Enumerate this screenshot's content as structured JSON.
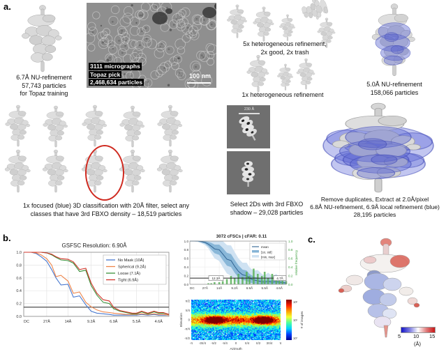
{
  "panels": {
    "a": "a.",
    "b": "b.",
    "c": "c."
  },
  "workflow": {
    "topaz_caption": "6.7Å NU-refinement\n57,743 particles\nfor Topaz training",
    "micrograph_line1": "3111 micrographs",
    "micrograph_line2": "Topaz pick",
    "micrograph_line3": "2,468,634 particles",
    "scale_bar_label": "100 nm",
    "hetero5_caption": "5x heterogeneous refinement,\n2x good, 2x trash",
    "hetero1_caption": "1x heterogeneous refinement",
    "nu5_caption": "5.0Å NU-refinement\n158,066 particles",
    "classification_caption": "1x focused (blue) 3D classification with 20Å filter, select any\nclasses that have 3rd FBXO density – 18,519 particles",
    "class2d_scale_label": "230 Å",
    "select2d_caption": "Select 2Ds with 3rd FBXO\nshadow – 29,028 particles",
    "final_caption": "Remove duplicates, Extract at 2.0Å/pixel\n6.8Å NU-refinement, 6.9Å local refinement (blue)\n28,195 particles"
  },
  "chart_data": [
    {
      "id": "gsfsc",
      "type": "line",
      "title": "GSFSC Resolution: 6.90Å",
      "threshold": 0.143,
      "x_max_freq": 0.234,
      "x_ticks": [
        [
          "DC",
          0
        ],
        [
          "27Å",
          0.037
        ],
        [
          "14Å",
          0.0714
        ],
        [
          "9.2Å",
          0.1087
        ],
        [
          "6.9Å",
          0.1449
        ],
        [
          "5.5Å",
          0.1818
        ],
        [
          "4.6Å",
          0.2174
        ]
      ],
      "y_ticks": [
        0,
        0.2,
        0.4,
        0.6,
        0.8,
        1.0
      ],
      "freq": [
        0,
        0.005,
        0.012,
        0.02,
        0.028,
        0.037,
        0.045,
        0.052,
        0.06,
        0.0714,
        0.08,
        0.09,
        0.1,
        0.1087,
        0.118,
        0.128,
        0.138,
        0.1449,
        0.155,
        0.165,
        0.175,
        0.1818,
        0.19,
        0.2,
        0.21,
        0.2174,
        0.225,
        0.234
      ],
      "series": [
        {
          "name": "No Mask (10Å)",
          "color": "#4878cf",
          "values": [
            1,
            1,
            1,
            0.98,
            0.93,
            0.86,
            0.73,
            0.6,
            0.49,
            0.5,
            0.3,
            0.32,
            0.18,
            0.08,
            0.05,
            0.04,
            0.03,
            0.02,
            0.02,
            0.02,
            0.02,
            0.02,
            0.03,
            0.02,
            0.03,
            0.02,
            0.02,
            0.02
          ]
        },
        {
          "name": "Spherical (9.2Å)",
          "color": "#ee854a",
          "values": [
            1,
            1,
            1,
            0.99,
            0.96,
            0.9,
            0.8,
            0.62,
            0.64,
            0.55,
            0.36,
            0.38,
            0.22,
            0.15,
            0.1,
            0.07,
            0.06,
            0.05,
            0.04,
            0.03,
            0.03,
            0.03,
            0.04,
            0.03,
            0.04,
            0.03,
            0.03,
            0.02
          ]
        },
        {
          "name": "Loose (7.1Å)",
          "color": "#3a923a",
          "values": [
            1,
            1,
            1,
            1,
            1,
            0.99,
            0.96,
            0.92,
            0.88,
            0.87,
            0.83,
            0.7,
            0.72,
            0.48,
            0.33,
            0.22,
            0.2,
            0.12,
            0.08,
            0.06,
            0.04,
            0.04,
            0.07,
            0.04,
            0.07,
            0.05,
            0.05,
            0.03
          ]
        },
        {
          "name": "Tight (6.9Å)",
          "color": "#d1352b",
          "values": [
            1,
            1,
            1,
            1,
            1,
            0.99,
            0.97,
            0.93,
            0.9,
            0.89,
            0.85,
            0.73,
            0.75,
            0.52,
            0.36,
            0.26,
            0.24,
            0.14,
            0.09,
            0.07,
            0.05,
            0.05,
            0.08,
            0.05,
            0.08,
            0.06,
            0.06,
            0.03
          ]
        }
      ]
    },
    {
      "id": "cfsc",
      "type": "line",
      "title": "3072 cFSCs | cFAR: 0.11",
      "legend": [
        "mean",
        "[±σ, std]",
        "[min, max]"
      ],
      "right_axis_label": "relative frequency",
      "threshold": 0.143,
      "annotation_left": "12.3Å",
      "annotation_right": "4.7Å",
      "x_max_freq": 0.234,
      "x_ticks": [
        [
          "DC",
          0
        ],
        [
          "27Å",
          0.037
        ],
        [
          "14Å",
          0.0714
        ],
        [
          "9.2Å",
          0.1087
        ],
        [
          "6.9Å",
          0.1449
        ],
        [
          "5.5Å",
          0.1818
        ],
        [
          "4.6Å",
          0.2174
        ]
      ],
      "y_ticks": [
        0,
        0.2,
        0.4,
        0.6,
        0.8,
        1.0
      ],
      "freq": [
        0,
        0.005,
        0.012,
        0.02,
        0.028,
        0.037,
        0.045,
        0.052,
        0.06,
        0.0714,
        0.08,
        0.09,
        0.1,
        0.1087,
        0.118,
        0.128,
        0.138,
        0.1449,
        0.155,
        0.165,
        0.175,
        0.1818,
        0.19,
        0.2,
        0.21,
        0.2174,
        0.225,
        0.234
      ],
      "mean": [
        1,
        1,
        1,
        1,
        0.99,
        0.97,
        0.93,
        0.88,
        0.82,
        0.8,
        0.7,
        0.58,
        0.55,
        0.42,
        0.3,
        0.22,
        0.2,
        0.14,
        0.1,
        0.08,
        0.06,
        0.05,
        0.07,
        0.05,
        0.06,
        0.05,
        0.04,
        0.03
      ],
      "std": [
        0,
        0,
        0,
        0.01,
        0.02,
        0.03,
        0.05,
        0.08,
        0.1,
        0.12,
        0.14,
        0.15,
        0.15,
        0.15,
        0.14,
        0.12,
        0.12,
        0.1,
        0.08,
        0.07,
        0.06,
        0.05,
        0.06,
        0.05,
        0.05,
        0.04,
        0.04,
        0.03
      ],
      "minmax": [
        0,
        0,
        0.01,
        0.02,
        0.04,
        0.06,
        0.1,
        0.16,
        0.22,
        0.26,
        0.3,
        0.33,
        0.35,
        0.33,
        0.3,
        0.28,
        0.3,
        0.25,
        0.22,
        0.25,
        0.18,
        0.15,
        0.2,
        0.14,
        0.18,
        0.12,
        0.1,
        0.08
      ],
      "hist": [
        0,
        0,
        0,
        0,
        0,
        0,
        0.01,
        0.01,
        0.02,
        0.02,
        0.03,
        0.05,
        0.08,
        0.06,
        0.1,
        0.07,
        0.12,
        0.08,
        0.15,
        0.1,
        0.08,
        0.12,
        0.06,
        0.1,
        0.05,
        0.08,
        0.04,
        0.03
      ]
    },
    {
      "id": "orientation-distribution",
      "type": "heatmap",
      "xlabel": "Azimuth",
      "ylabel": "Elevation",
      "x_tick_labels": [
        "-π",
        "-3π/4",
        "-π/2",
        "-π/4",
        "0",
        "π/4",
        "π/2",
        "3π/4",
        "π"
      ],
      "y_tick_labels": [
        "π/2",
        "π/4",
        "0",
        "-π/4",
        "-π/2"
      ],
      "colorbar_label": "# of images",
      "colorbar_ticks": [
        "10²",
        "10¹",
        "10⁰"
      ],
      "hotspots": [
        {
          "azimuth": -1.5,
          "elevation": 0.0
        },
        {
          "azimuth": 1.9,
          "elevation": 0.0
        }
      ]
    },
    {
      "id": "local-resolution-colorbar",
      "type": "colorbar",
      "ticks": [
        "5",
        "10",
        "15"
      ],
      "label": "(Å)",
      "colors": [
        "#1515c8",
        "#ffffff",
        "#c81515"
      ]
    }
  ]
}
